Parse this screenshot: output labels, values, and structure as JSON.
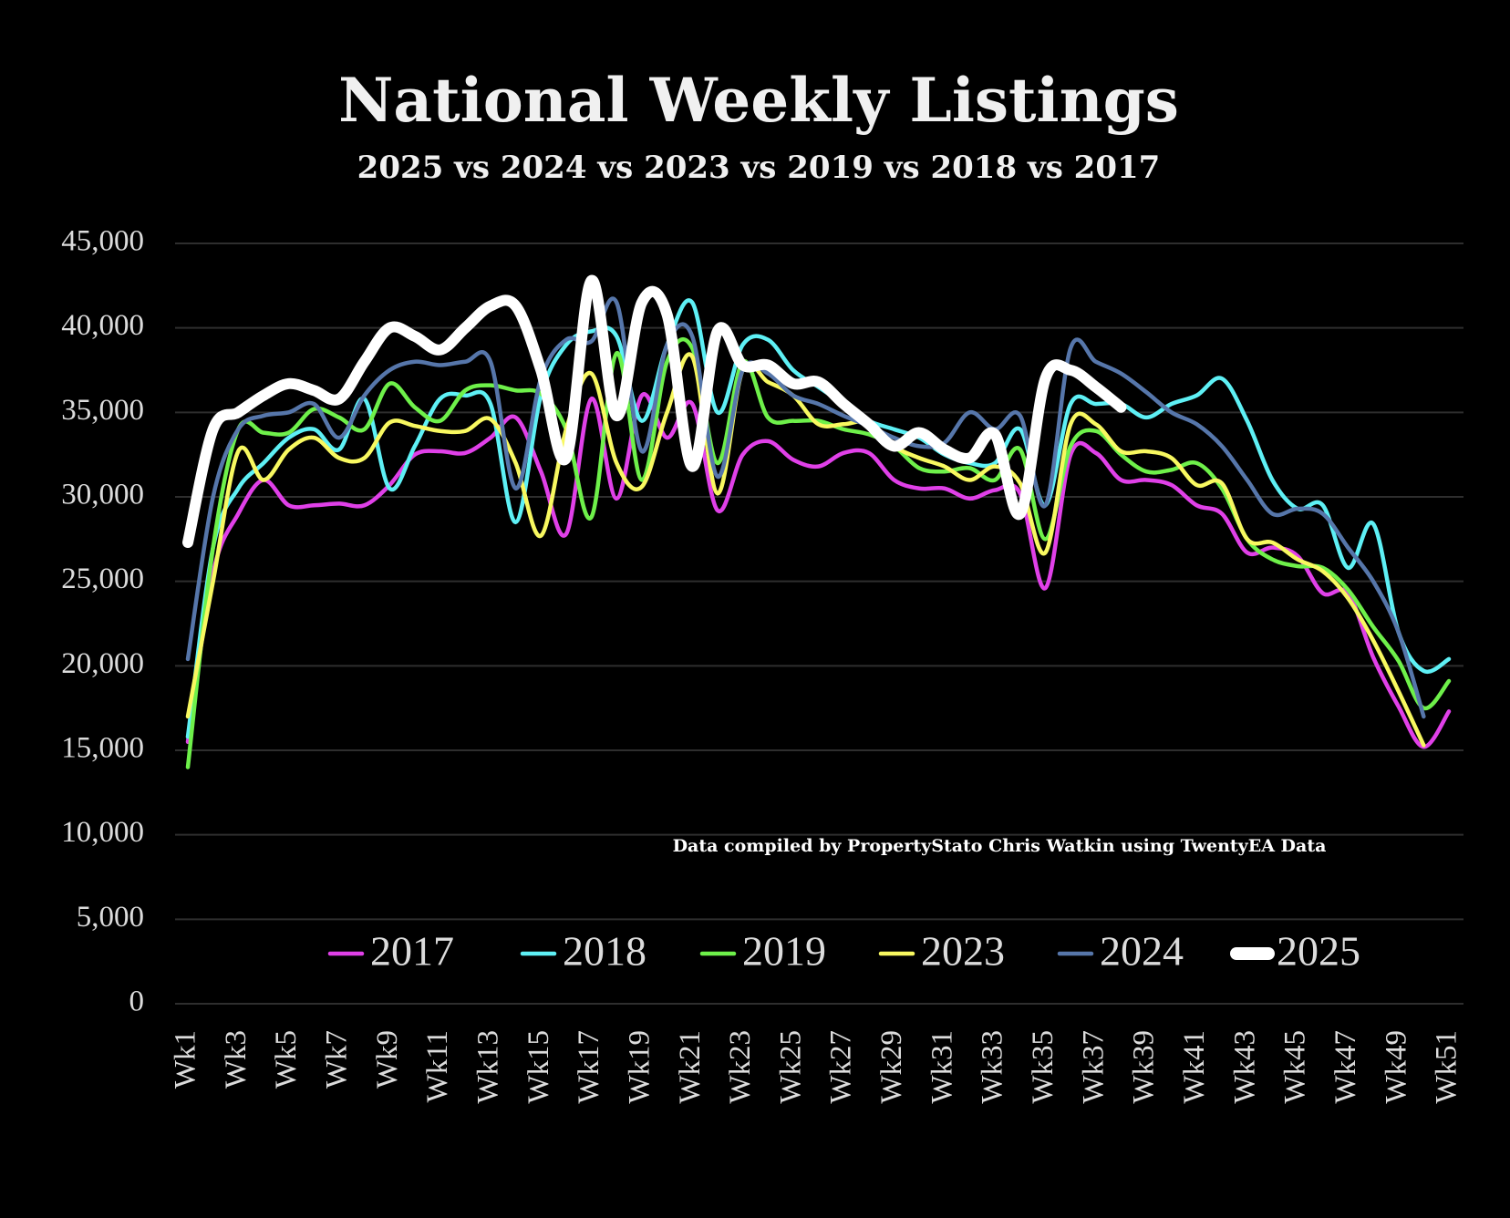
{
  "chart_data": {
    "type": "line",
    "title": "National Weekly Listings",
    "subtitle": "2025 vs 2024 vs 2023 vs 2019 vs 2018 vs 2017",
    "annotation": "Data compiled by PropertyStato Chris Watkin using TwentyEA Data",
    "categories": [
      "Wk1",
      null,
      "Wk3",
      null,
      "Wk5",
      null,
      "Wk7",
      null,
      "Wk9",
      null,
      "Wk11",
      null,
      "Wk13",
      null,
      "Wk15",
      null,
      "Wk17",
      null,
      "Wk19",
      null,
      "Wk21",
      null,
      "Wk23",
      null,
      "Wk25",
      null,
      "Wk27",
      null,
      "Wk29",
      null,
      "Wk31",
      null,
      "Wk33",
      null,
      "Wk35",
      null,
      "Wk37",
      null,
      "Wk39",
      null,
      "Wk41",
      null,
      "Wk43",
      null,
      "Wk45",
      null,
      "Wk47",
      null,
      "Wk49",
      null,
      "Wk51"
    ],
    "ylim": [
      0,
      45000
    ],
    "yticks": [
      0,
      {
        "value": 5000,
        "label": "5,000"
      },
      {
        "value": 10000,
        "label": "10,000"
      },
      {
        "value": 15000,
        "label": "15,000"
      },
      {
        "value": 20000,
        "label": "20,000"
      },
      {
        "value": 25000,
        "label": "25,000"
      },
      {
        "value": 30000,
        "label": "30,000"
      },
      {
        "value": 35000,
        "label": "35,000"
      },
      {
        "value": 40000,
        "label": "40,000"
      },
      {
        "value": 45000,
        "label": "45,000"
      }
    ],
    "grid": true,
    "legend": "bottom",
    "series": [
      {
        "name": "2017",
        "color": "#e040e8",
        "values": [
          15500,
          25500,
          29000,
          31000,
          29500,
          29500,
          29600,
          29500,
          30700,
          32500,
          32700,
          32600,
          33500,
          34700,
          31500,
          27800,
          35800,
          29900,
          36000,
          33500,
          35500,
          29200,
          32500,
          33300,
          32200,
          31800,
          32600,
          32600,
          31000,
          30500,
          30500,
          29900,
          30400,
          30200,
          24600,
          32500,
          32600,
          31000,
          31000,
          30700,
          29500,
          29000,
          26700,
          27000,
          26500,
          24300,
          24300,
          20500,
          17600,
          15200,
          17300
        ]
      },
      {
        "name": "2018",
        "color": "#5ef0f5",
        "values": [
          15800,
          27000,
          30500,
          32000,
          33500,
          34000,
          32800,
          35800,
          30500,
          33000,
          35800,
          36000,
          35500,
          28500,
          36000,
          39000,
          39800,
          39500,
          34500,
          39000,
          41500,
          35000,
          39000,
          39300,
          37500,
          36500,
          35500,
          34500,
          34000,
          33500,
          32500,
          32000,
          32000,
          34000,
          29500,
          35500,
          35500,
          35500,
          34700,
          35500,
          36000,
          37000,
          34500,
          31000,
          29300,
          29500,
          25800,
          28400,
          22000,
          19700,
          20400
        ]
      },
      {
        "name": "2019",
        "color": "#6ef04a",
        "values": [
          14000,
          27000,
          34000,
          33800,
          33800,
          35200,
          34700,
          34000,
          36700,
          35300,
          34500,
          36300,
          36600,
          36300,
          36100,
          34000,
          28800,
          38500,
          31000,
          38000,
          38800,
          32000,
          38000,
          34700,
          34500,
          34500,
          34000,
          33700,
          33000,
          31700,
          31500,
          31700,
          31000,
          32800,
          27500,
          33000,
          33900,
          32500,
          31500,
          31600,
          32000,
          30500,
          27500,
          26300,
          25900,
          25800,
          24500,
          22300,
          20300,
          17500,
          19100
        ]
      },
      {
        "name": "2023",
        "color": "#f8f860",
        "values": [
          17000,
          25000,
          32700,
          31000,
          32800,
          33500,
          32300,
          32300,
          34400,
          34200,
          33900,
          33900,
          34600,
          32000,
          27700,
          34000,
          37300,
          32000,
          30600,
          35000,
          38300,
          30200,
          37500,
          36800,
          36000,
          34300,
          34300,
          34400,
          33000,
          32300,
          31800,
          31000,
          31800,
          30800,
          26700,
          34300,
          34300,
          32700,
          32700,
          32300,
          30700,
          30800,
          27500,
          27300,
          26300,
          25600,
          24000,
          21500,
          18500,
          15300,
          null
        ]
      },
      {
        "name": "2024",
        "color": "#5676aa",
        "values": [
          20400,
          30000,
          34000,
          34800,
          35000,
          35500,
          33500,
          36000,
          37500,
          38000,
          37800,
          38000,
          38000,
          30500,
          37000,
          39300,
          39200,
          41500,
          32700,
          39000,
          39500,
          31200,
          37500,
          37300,
          36000,
          35500,
          34800,
          34200,
          33500,
          33000,
          33200,
          35000,
          34000,
          34800,
          29500,
          38800,
          38000,
          37300,
          36200,
          35000,
          34300,
          33000,
          31000,
          29000,
          29300,
          29000,
          27000,
          25000,
          22000,
          17000,
          null
        ]
      },
      {
        "name": "2025",
        "color": "#ffffff",
        "values": [
          27300,
          34000,
          35000,
          36000,
          36700,
          36300,
          35800,
          38000,
          40000,
          39500,
          38700,
          40000,
          41300,
          41300,
          37500,
          32300,
          42800,
          34800,
          41500,
          40800,
          31800,
          39800,
          37800,
          37800,
          36700,
          36800,
          35500,
          34300,
          33000,
          33800,
          32800,
          32300,
          33700,
          29000,
          37000,
          37500,
          36500,
          35300,
          null,
          null,
          null,
          null,
          null,
          null,
          null,
          null,
          null,
          null,
          null,
          null,
          null
        ]
      }
    ]
  }
}
